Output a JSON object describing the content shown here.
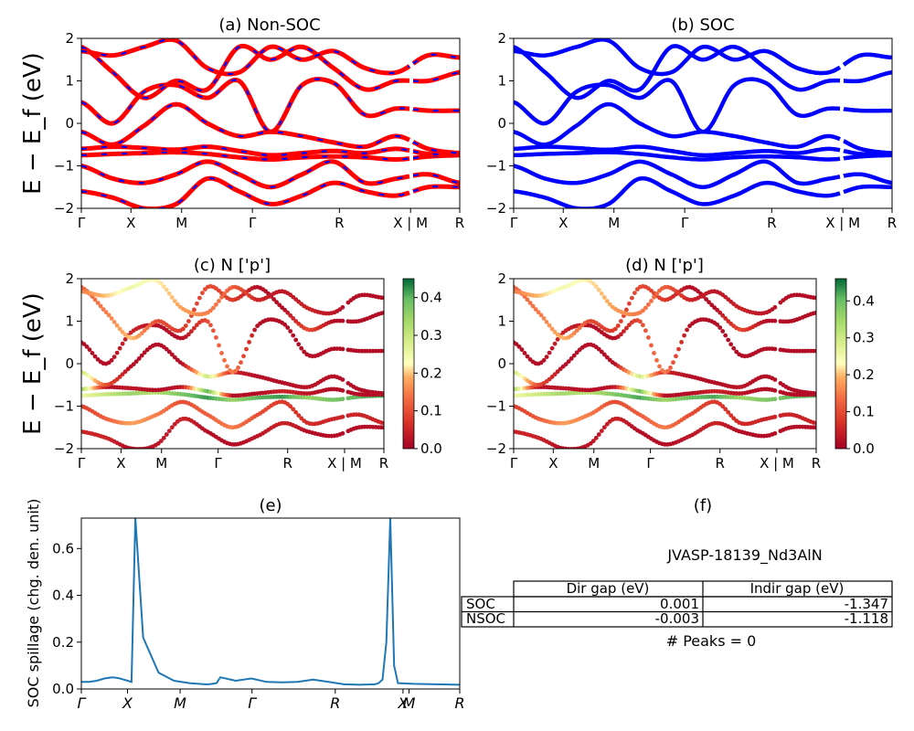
{
  "figure": {
    "panels": {
      "a": {
        "title": "(a) Non-SOC"
      },
      "b": {
        "title": "(b) SOC"
      },
      "c": {
        "title": "(c)  N ['p']"
      },
      "d": {
        "title": "(d) N ['p']"
      },
      "e": {
        "title": "(e)"
      },
      "f": {
        "title": "(f)"
      }
    },
    "band_ylabel": "E − E_f (eV)",
    "band_yticks": [
      "−2",
      "−1",
      "0",
      "1",
      "2"
    ],
    "kpath_labels": [
      "Γ",
      "X",
      "M",
      "Γ",
      "R",
      "X | M",
      "R"
    ],
    "colorbar_c_ticks": [
      "0.0",
      "0.1",
      "0.2",
      "0.3",
      "0.4"
    ],
    "colorbar_d_ticks": [
      "0.0",
      "0.1",
      "0.2",
      "0.3",
      "0.4"
    ],
    "spillage": {
      "ylabel": "SOC spillage (chg. den. unit)",
      "yticks": [
        "0.0",
        "0.2",
        "0.4",
        "0.6"
      ],
      "xticks": [
        "Γ",
        "X",
        "M",
        "Γ",
        "R",
        "X",
        "M",
        "R"
      ]
    },
    "info": {
      "material": "JVASP-18139_Nd3AlN",
      "table": {
        "headers": [
          "",
          "Dir gap (eV)",
          "Indir gap (eV)"
        ],
        "rows": [
          {
            "label": "SOC",
            "dir": "0.001",
            "indir": "-1.347"
          },
          {
            "label": "NSOC",
            "dir": "-0.003",
            "indir": "-1.118"
          }
        ]
      },
      "peaks": "# Peaks = 0"
    },
    "colors": {
      "nonsoc_line": "#ff0000",
      "nonsoc_dash": "#0000ff",
      "soc_line": "#0000ff",
      "spillage_line": "#1f77b4"
    }
  },
  "chart_data": [
    {
      "type": "line",
      "title": "(a) Non-SOC",
      "ylabel": "E − E_f (eV)",
      "ylim": [
        -2,
        2
      ],
      "x_ticks": [
        "Γ",
        "X",
        "M",
        "Γ",
        "R",
        "X | M",
        "R"
      ],
      "x": [
        0,
        0.5,
        1,
        1.5,
        2,
        2.5,
        3,
        3.5,
        4,
        4.5,
        5,
        5.5,
        6
      ],
      "series": [
        {
          "values": [
            -1.6,
            -1.75,
            -2.0,
            -1.9,
            -1.3,
            -1.6,
            -1.9,
            -1.7,
            -1.4,
            -1.6,
            -1.7,
            -1.5,
            -1.5
          ]
        },
        {
          "values": [
            -1.0,
            -1.3,
            -1.4,
            -1.2,
            -0.9,
            -1.2,
            -1.5,
            -1.2,
            -0.9,
            -1.4,
            -1.3,
            -1.2,
            -1.4
          ]
        },
        {
          "values": [
            -0.75,
            -0.72,
            -0.7,
            -0.68,
            -0.72,
            -0.8,
            -0.85,
            -0.8,
            -0.78,
            -0.8,
            -0.85,
            -0.78,
            -0.75
          ]
        },
        {
          "values": [
            -0.6,
            -0.55,
            -0.58,
            -0.62,
            -0.55,
            -0.65,
            -0.75,
            -0.7,
            -0.65,
            -0.7,
            -0.6,
            -0.72,
            -0.72
          ]
        },
        {
          "values": [
            -0.2,
            -0.5,
            -0.05,
            0.45,
            0.0,
            -0.3,
            -0.2,
            -0.3,
            -0.45,
            -0.55,
            -0.3,
            -0.6,
            -0.7
          ]
        },
        {
          "values": [
            0.5,
            0.0,
            0.75,
            0.9,
            0.6,
            1.0,
            -0.2,
            0.9,
            0.95,
            0.2,
            0.35,
            0.3,
            0.3
          ]
        },
        {
          "values": [
            1.8,
            1.2,
            0.6,
            1.0,
            0.8,
            1.8,
            1.5,
            1.8,
            1.3,
            0.8,
            1.0,
            1.0,
            1.2
          ]
        },
        {
          "values": [
            1.7,
            1.6,
            1.8,
            1.95,
            1.3,
            1.2,
            1.8,
            1.5,
            1.7,
            1.3,
            1.2,
            1.6,
            1.55
          ]
        }
      ]
    },
    {
      "type": "line",
      "title": "(b) SOC",
      "ylim": [
        -2,
        2
      ],
      "x_ticks": [
        "Γ",
        "X",
        "M",
        "Γ",
        "R",
        "X | M",
        "R"
      ],
      "x": [
        0,
        0.5,
        1,
        1.5,
        2,
        2.5,
        3,
        3.5,
        4,
        4.5,
        5,
        5.5,
        6
      ],
      "series": [
        {
          "values": [
            -1.6,
            -1.75,
            -2.0,
            -1.9,
            -1.3,
            -1.6,
            -1.9,
            -1.7,
            -1.4,
            -1.6,
            -1.7,
            -1.5,
            -1.5
          ]
        },
        {
          "values": [
            -1.0,
            -1.3,
            -1.4,
            -1.2,
            -0.9,
            -1.2,
            -1.5,
            -1.2,
            -0.9,
            -1.4,
            -1.3,
            -1.2,
            -1.4
          ]
        },
        {
          "values": [
            -0.75,
            -0.72,
            -0.7,
            -0.68,
            -0.72,
            -0.8,
            -0.85,
            -0.8,
            -0.78,
            -0.8,
            -0.85,
            -0.78,
            -0.75
          ]
        },
        {
          "values": [
            -0.6,
            -0.55,
            -0.58,
            -0.62,
            -0.55,
            -0.65,
            -0.75,
            -0.7,
            -0.65,
            -0.7,
            -0.6,
            -0.72,
            -0.72
          ]
        },
        {
          "values": [
            -0.2,
            -0.5,
            -0.05,
            0.45,
            0.0,
            -0.3,
            -0.2,
            -0.3,
            -0.45,
            -0.55,
            -0.3,
            -0.6,
            -0.7
          ]
        },
        {
          "values": [
            0.5,
            0.0,
            0.75,
            0.9,
            0.6,
            1.0,
            -0.2,
            0.9,
            0.95,
            0.2,
            0.35,
            0.3,
            0.3
          ]
        },
        {
          "values": [
            1.8,
            1.2,
            0.6,
            1.0,
            0.8,
            1.8,
            1.5,
            1.8,
            1.3,
            0.8,
            1.0,
            1.0,
            1.2
          ]
        },
        {
          "values": [
            1.7,
            1.6,
            1.8,
            1.95,
            1.3,
            1.2,
            1.8,
            1.5,
            1.7,
            1.3,
            1.2,
            1.6,
            1.55
          ]
        }
      ]
    },
    {
      "type": "scatter",
      "title": "(c)  N ['p']",
      "ylabel": "E − E_f (eV)",
      "ylim": [
        -2,
        2
      ],
      "colorbar_range": [
        0,
        0.45
      ],
      "x_ticks": [
        "Γ",
        "X",
        "M",
        "Γ",
        "R",
        "X | M",
        "R"
      ],
      "x": [
        0,
        0.5,
        1,
        1.5,
        2,
        2.5,
        3,
        3.5,
        4,
        4.5,
        5,
        5.5,
        6
      ],
      "series": [
        {
          "values": [
            -1.6,
            -1.75,
            -2.0,
            -1.9,
            -1.3,
            -1.6,
            -1.9,
            -1.7,
            -1.4,
            -1.6,
            -1.7,
            -1.5,
            -1.5
          ],
          "weight": [
            0.05,
            0.05,
            0.02,
            0.03,
            0.05,
            0.02,
            0.02,
            0.03,
            0.05,
            0.02,
            0.02,
            0.02,
            0.02
          ]
        },
        {
          "values": [
            -1.0,
            -1.3,
            -1.4,
            -1.2,
            -0.9,
            -1.2,
            -1.5,
            -1.2,
            -0.9,
            -1.4,
            -1.3,
            -1.2,
            -1.4
          ],
          "weight": [
            0.08,
            0.12,
            0.18,
            0.15,
            0.1,
            0.12,
            0.15,
            0.1,
            0.08,
            0.06,
            0.05,
            0.05,
            0.05
          ]
        },
        {
          "values": [
            -0.75,
            -0.72,
            -0.7,
            -0.68,
            -0.72,
            -0.8,
            -0.85,
            -0.8,
            -0.78,
            -0.8,
            -0.85,
            -0.78,
            -0.75
          ],
          "weight": [
            0.25,
            0.3,
            0.35,
            0.32,
            0.38,
            0.42,
            0.35,
            0.4,
            0.42,
            0.35,
            0.38,
            0.4,
            0.42
          ]
        },
        {
          "values": [
            -0.6,
            -0.55,
            -0.58,
            -0.62,
            -0.55,
            -0.65,
            -0.75,
            -0.7,
            -0.65,
            -0.7,
            -0.6,
            -0.72,
            -0.72
          ],
          "weight": [
            0.35,
            0.02,
            0.03,
            0.02,
            0.03,
            0.4,
            0.02,
            0.02,
            0.05,
            0.03,
            0.02,
            0.02,
            0.02
          ]
        },
        {
          "values": [
            -0.2,
            -0.5,
            -0.05,
            0.45,
            0.0,
            -0.3,
            -0.2,
            -0.3,
            -0.45,
            -0.55,
            -0.3,
            -0.6,
            -0.7
          ],
          "weight": [
            0.3,
            0.1,
            0.02,
            0.02,
            0.02,
            0.3,
            0.05,
            0.02,
            0.02,
            0.03,
            0.02,
            0.02,
            0.02
          ]
        },
        {
          "values": [
            0.5,
            0.0,
            0.75,
            0.9,
            0.6,
            1.0,
            -0.2,
            0.9,
            0.95,
            0.2,
            0.35,
            0.3,
            0.3
          ],
          "weight": [
            0.02,
            0.02,
            0.05,
            0.02,
            0.02,
            0.1,
            0.15,
            0.02,
            0.02,
            0.02,
            0.02,
            0.02,
            0.02
          ]
        },
        {
          "values": [
            1.8,
            1.2,
            0.6,
            1.0,
            0.8,
            1.8,
            1.5,
            1.8,
            1.3,
            0.8,
            1.0,
            1.0,
            1.2
          ],
          "weight": [
            0.12,
            0.15,
            0.2,
            0.1,
            0.08,
            0.1,
            0.08,
            0.02,
            0.02,
            0.1,
            0.02,
            0.02,
            0.02
          ]
        },
        {
          "values": [
            1.7,
            1.6,
            1.8,
            1.95,
            1.3,
            1.2,
            1.8,
            1.5,
            1.7,
            1.3,
            1.2,
            1.6,
            1.55
          ],
          "weight": [
            0.15,
            0.2,
            0.25,
            0.22,
            0.18,
            0.15,
            0.12,
            0.05,
            0.03,
            0.05,
            0.03,
            0.02,
            0.02
          ]
        }
      ]
    },
    {
      "type": "scatter",
      "title": "(d) N ['p']",
      "ylim": [
        -2,
        2
      ],
      "colorbar_range": [
        0,
        0.46
      ],
      "x_ticks": [
        "Γ",
        "X",
        "M",
        "Γ",
        "R",
        "X | M",
        "R"
      ],
      "x": [
        0,
        0.5,
        1,
        1.5,
        2,
        2.5,
        3,
        3.5,
        4,
        4.5,
        5,
        5.5,
        6
      ],
      "series": [
        {
          "values": [
            -1.6,
            -1.75,
            -2.0,
            -1.9,
            -1.3,
            -1.6,
            -1.9,
            -1.7,
            -1.4,
            -1.6,
            -1.7,
            -1.5,
            -1.5
          ],
          "weight": [
            0.05,
            0.05,
            0.02,
            0.03,
            0.05,
            0.02,
            0.02,
            0.03,
            0.05,
            0.02,
            0.02,
            0.02,
            0.02
          ]
        },
        {
          "values": [
            -1.0,
            -1.3,
            -1.4,
            -1.2,
            -0.9,
            -1.2,
            -1.5,
            -1.2,
            -0.9,
            -1.4,
            -1.3,
            -1.2,
            -1.4
          ],
          "weight": [
            0.08,
            0.12,
            0.18,
            0.15,
            0.1,
            0.12,
            0.15,
            0.1,
            0.08,
            0.06,
            0.05,
            0.05,
            0.05
          ]
        },
        {
          "values": [
            -0.75,
            -0.72,
            -0.7,
            -0.68,
            -0.72,
            -0.8,
            -0.85,
            -0.8,
            -0.78,
            -0.8,
            -0.85,
            -0.78,
            -0.75
          ],
          "weight": [
            0.25,
            0.3,
            0.35,
            0.32,
            0.38,
            0.42,
            0.35,
            0.4,
            0.42,
            0.35,
            0.38,
            0.4,
            0.42
          ]
        },
        {
          "values": [
            -0.6,
            -0.55,
            -0.58,
            -0.62,
            -0.55,
            -0.65,
            -0.75,
            -0.7,
            -0.65,
            -0.7,
            -0.6,
            -0.72,
            -0.72
          ],
          "weight": [
            0.35,
            0.02,
            0.03,
            0.02,
            0.03,
            0.4,
            0.02,
            0.02,
            0.05,
            0.03,
            0.02,
            0.02,
            0.02
          ]
        },
        {
          "values": [
            -0.2,
            -0.5,
            -0.05,
            0.45,
            0.0,
            -0.3,
            -0.2,
            -0.3,
            -0.45,
            -0.55,
            -0.3,
            -0.6,
            -0.7
          ],
          "weight": [
            0.3,
            0.1,
            0.02,
            0.02,
            0.02,
            0.3,
            0.05,
            0.02,
            0.02,
            0.03,
            0.02,
            0.02,
            0.02
          ]
        },
        {
          "values": [
            0.5,
            0.0,
            0.75,
            0.9,
            0.6,
            1.0,
            -0.2,
            0.9,
            0.95,
            0.2,
            0.35,
            0.3,
            0.3
          ],
          "weight": [
            0.02,
            0.02,
            0.05,
            0.02,
            0.02,
            0.1,
            0.15,
            0.02,
            0.02,
            0.02,
            0.02,
            0.02,
            0.02
          ]
        },
        {
          "values": [
            1.8,
            1.2,
            0.6,
            1.0,
            0.8,
            1.8,
            1.5,
            1.8,
            1.3,
            0.8,
            1.0,
            1.0,
            1.2
          ],
          "weight": [
            0.12,
            0.15,
            0.2,
            0.1,
            0.08,
            0.1,
            0.08,
            0.02,
            0.02,
            0.1,
            0.02,
            0.02,
            0.02
          ]
        },
        {
          "values": [
            1.7,
            1.6,
            1.8,
            1.95,
            1.3,
            1.2,
            1.8,
            1.5,
            1.7,
            1.3,
            1.2,
            1.6,
            1.55
          ],
          "weight": [
            0.15,
            0.2,
            0.25,
            0.22,
            0.18,
            0.15,
            0.12,
            0.05,
            0.03,
            0.05,
            0.03,
            0.02,
            0.02
          ]
        }
      ]
    },
    {
      "type": "line",
      "title": "(e)",
      "ylabel": "SOC spillage (chg. den. unit)",
      "ylim": [
        0,
        0.73
      ],
      "x_ticks": [
        "Γ",
        "X",
        "M",
        "Γ",
        "R",
        "X",
        "M",
        "R"
      ],
      "x": [
        0,
        0.1,
        0.2,
        0.3,
        0.4,
        0.45,
        0.5,
        0.55,
        0.6,
        0.65,
        0.7,
        0.8,
        1.0,
        1.2,
        1.4,
        1.6,
        1.65,
        1.7,
        1.75,
        1.8,
        2.0,
        2.2,
        2.4,
        2.6,
        2.8,
        3.0,
        3.2,
        3.4,
        3.6,
        3.8,
        3.85,
        3.9,
        3.95,
        4.0,
        4.05,
        4.1,
        4.3,
        4.6,
        4.9
      ],
      "series": [
        {
          "name": "",
          "values": [
            0.03,
            0.03,
            0.035,
            0.045,
            0.05,
            0.048,
            0.045,
            0.04,
            0.035,
            0.03,
            0.73,
            0.22,
            0.07,
            0.035,
            0.025,
            0.02,
            0.02,
            0.022,
            0.025,
            0.05,
            0.035,
            0.045,
            0.03,
            0.028,
            0.03,
            0.04,
            0.03,
            0.02,
            0.018,
            0.02,
            0.025,
            0.04,
            0.2,
            0.73,
            0.1,
            0.025,
            0.022,
            0.02,
            0.018
          ]
        }
      ]
    }
  ]
}
